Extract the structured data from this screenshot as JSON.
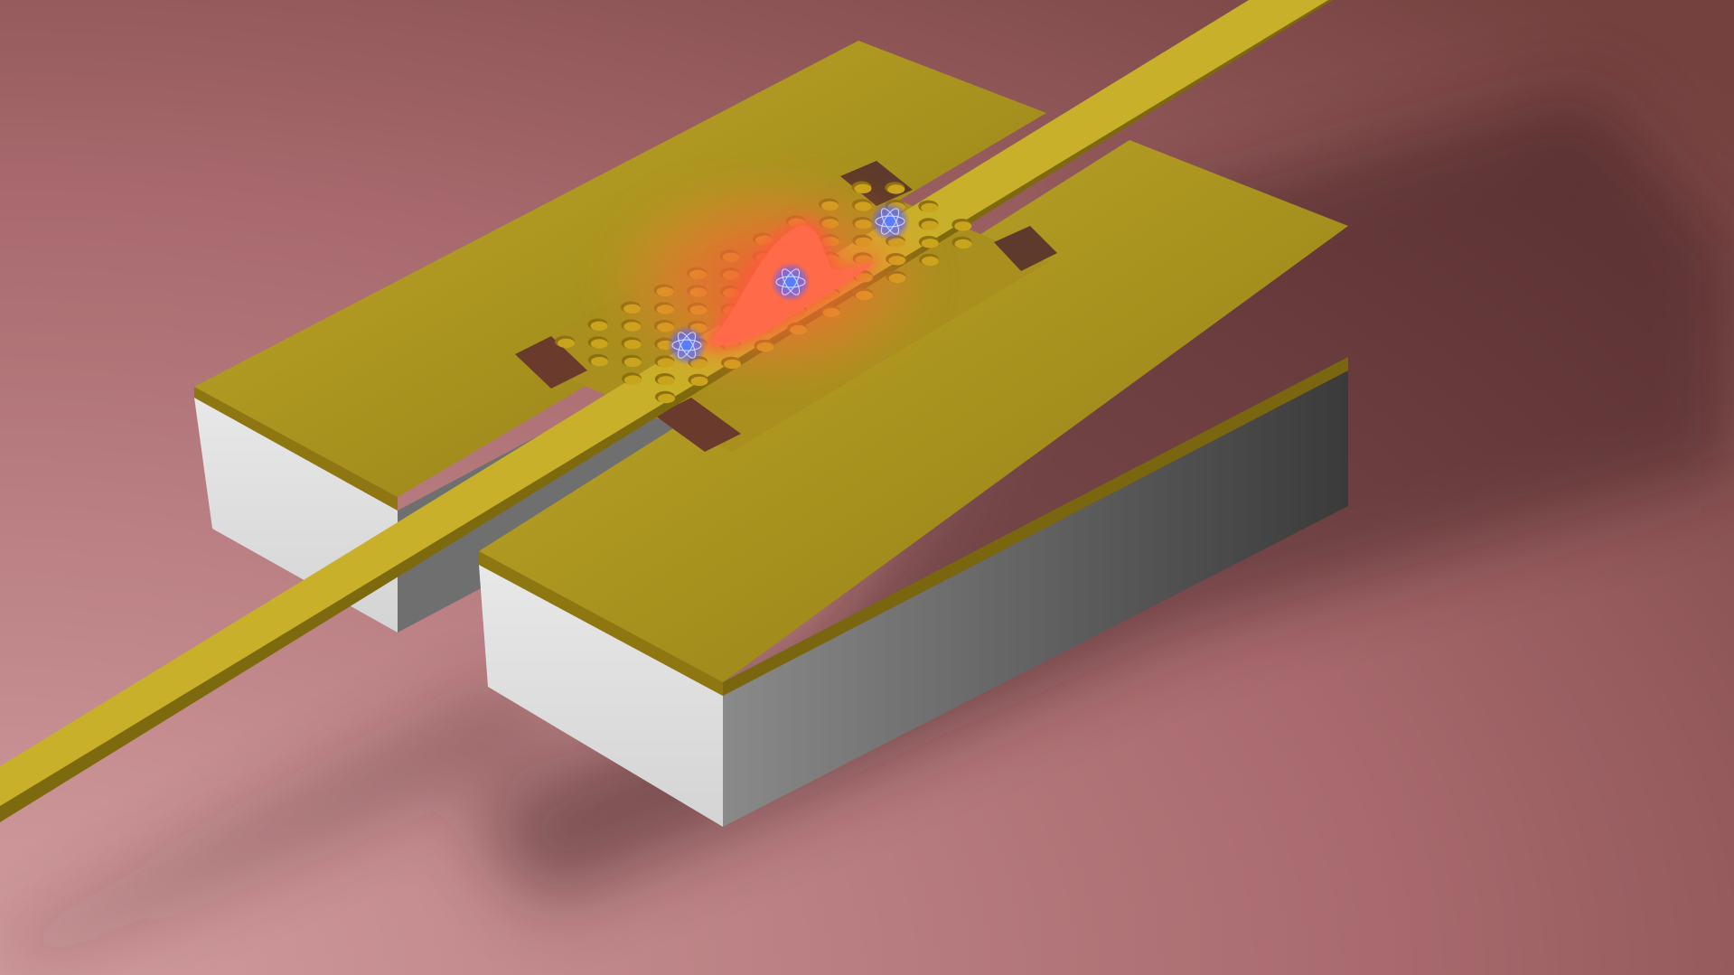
{
  "scene": {
    "kind": "3d-render",
    "subject": "photonic-crystal-cavity-with-quantum-emitters",
    "colors": {
      "background_light": "#d39ea0",
      "background_mid": "#a7696d",
      "background_dark": "#74413f",
      "gold_top": "#b8a222",
      "gold_edge": "#7f6a10",
      "substrate_light": "#dedede",
      "substrate_dark": "#4a4a4a",
      "hole_fill": "#c9a51d",
      "hole_shadow": "#8d7010",
      "field_glow": "#ff5a3a",
      "emitter": "#5b7cff"
    },
    "icons": {
      "field_mode": "field-mode-icon",
      "emitter": "atom-icon"
    },
    "hole_grid": {
      "rows": 7,
      "columns": 10
    },
    "emitter_count": 3
  }
}
